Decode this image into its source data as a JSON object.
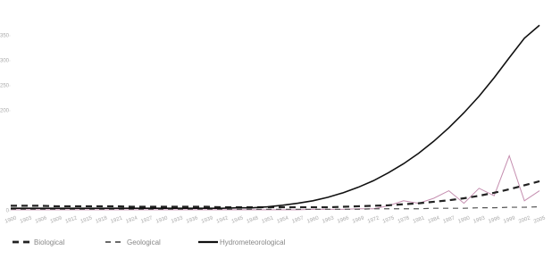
{
  "chart_data": {
    "type": "line",
    "categories": [
      "1900",
      "1903",
      "1906",
      "1909",
      "1912",
      "1915",
      "1918",
      "1921",
      "1924",
      "1927",
      "1930",
      "1933",
      "1936",
      "1939",
      "1942",
      "1945",
      "1948",
      "1951",
      "1954",
      "1957",
      "1960",
      "1963",
      "1966",
      "1969",
      "1972",
      "1975",
      "1978",
      "1981",
      "1984",
      "1987",
      "1990",
      "1993",
      "1996",
      "1999",
      "2002",
      "2005"
    ],
    "series": [
      {
        "name": "Biological",
        "color": "#222222",
        "dash": "7,5",
        "width": 2.2,
        "values": [
          10,
          10,
          10,
          9,
          9,
          9,
          9,
          9,
          8,
          8,
          8,
          8,
          8,
          8,
          7,
          7,
          7,
          7,
          7,
          7,
          7,
          7,
          8,
          9,
          10,
          11,
          13,
          15,
          18,
          21,
          25,
          30,
          36,
          43,
          51,
          59
        ]
      },
      {
        "name": "Geological",
        "color": "#555555",
        "dash": "6,5",
        "width": 1.2,
        "values": [
          3,
          3,
          3,
          3,
          3,
          3,
          3,
          3,
          3,
          3,
          3,
          3,
          3,
          3,
          3,
          3,
          3,
          3,
          3,
          3,
          3,
          3,
          3,
          3,
          4,
          4,
          4,
          4,
          5,
          5,
          5,
          6,
          6,
          7,
          7,
          8
        ]
      },
      {
        "name": "Hydrometeorological",
        "color": "#111111",
        "dash": "none",
        "width": 1.6,
        "values": [
          5,
          5,
          5,
          5,
          5,
          5,
          5,
          5,
          5,
          5,
          5,
          5,
          5,
          5,
          5,
          6,
          6,
          8,
          11,
          15,
          20,
          27,
          36,
          47,
          60,
          76,
          94,
          115,
          139,
          166,
          196,
          229,
          266,
          306,
          345,
          371
        ]
      },
      {
        "color": "#c58fb0",
        "dash": "none",
        "width": 1,
        "values": [
          2,
          2,
          2,
          2,
          2,
          2,
          2,
          2,
          2,
          2,
          2,
          2,
          2,
          2,
          2,
          2,
          2,
          2,
          2,
          2,
          3,
          3,
          3,
          4,
          4,
          10,
          20,
          15,
          25,
          40,
          15,
          45,
          30,
          110,
          20,
          40
        ]
      }
    ],
    "ylim": [
      0,
      400
    ],
    "yticks": [
      0,
      200,
      250,
      300,
      350
    ],
    "grid": false
  }
}
